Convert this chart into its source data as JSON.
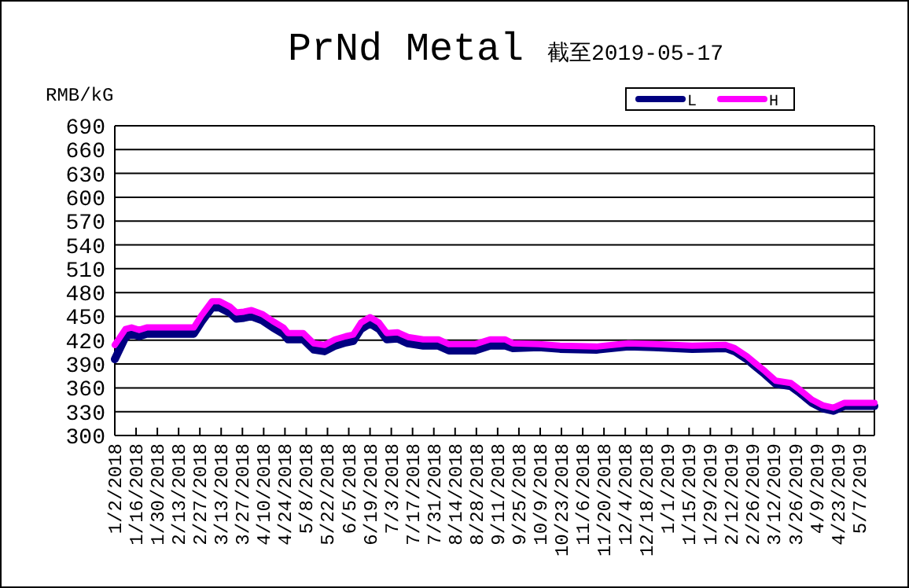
{
  "chart_data": {
    "type": "line",
    "title": "PrNd Metal",
    "subtitle": "截至2019-05-17",
    "ylabel": "RMB/kG",
    "x": [
      "2018-01-02",
      "2018-01-09",
      "2018-01-13",
      "2018-01-18",
      "2018-01-23",
      "2018-02-23",
      "2018-02-28",
      "2018-03-07",
      "2018-03-12",
      "2018-03-19",
      "2018-03-23",
      "2018-03-28",
      "2018-04-02",
      "2018-04-09",
      "2018-04-16",
      "2018-04-23",
      "2018-04-26",
      "2018-05-06",
      "2018-05-13",
      "2018-05-20",
      "2018-05-27",
      "2018-06-03",
      "2018-06-08",
      "2018-06-13",
      "2018-06-19",
      "2018-06-25",
      "2018-06-30",
      "2018-07-07",
      "2018-07-14",
      "2018-07-24",
      "2018-08-03",
      "2018-08-10",
      "2018-08-27",
      "2018-09-06",
      "2018-09-16",
      "2018-09-21",
      "2018-10-08",
      "2018-10-22",
      "2018-11-15",
      "2018-12-06",
      "2018-12-23",
      "2019-01-17",
      "2019-02-08",
      "2019-02-14",
      "2019-02-22",
      "2019-02-27",
      "2019-03-06",
      "2019-03-13",
      "2019-03-23",
      "2019-03-28",
      "2019-04-06",
      "2019-04-13",
      "2019-04-20",
      "2019-04-27",
      "2019-05-17"
    ],
    "series": [
      {
        "name": "L",
        "color": "#000080",
        "values": [
          396,
          424,
          428,
          425,
          428,
          428,
          443,
          461,
          461,
          454,
          447,
          448,
          450,
          445,
          436,
          428,
          421,
          421,
          408,
          406,
          413,
          417,
          419,
          434,
          441,
          434,
          421,
          422,
          416,
          413,
          413,
          407,
          407,
          413,
          413,
          410,
          411,
          409,
          408,
          412,
          411,
          409,
          410,
          406,
          396,
          388,
          377,
          365,
          362,
          355,
          341,
          334,
          331,
          337,
          337
        ]
      },
      {
        "name": "H",
        "color": "#ff00ff",
        "values": [
          414,
          434,
          436,
          433,
          436,
          436,
          451,
          469,
          469,
          462,
          455,
          456,
          458,
          453,
          444,
          436,
          429,
          429,
          416,
          414,
          421,
          425,
          427,
          442,
          449,
          442,
          429,
          430,
          424,
          421,
          421,
          415,
          415,
          421,
          421,
          416,
          415,
          413,
          412,
          416,
          415,
          413,
          414,
          410,
          400,
          392,
          381,
          369,
          366,
          359,
          345,
          338,
          335,
          341,
          341
        ]
      }
    ],
    "xlim": [
      "2018-01-02",
      "2019-05-17"
    ],
    "xticks": [
      {
        "value": "2018-01-02",
        "label": "1/2/2018"
      },
      {
        "value": "2018-01-16",
        "label": "1/16/2018"
      },
      {
        "value": "2018-01-30",
        "label": "1/30/2018"
      },
      {
        "value": "2018-02-13",
        "label": "2/13/2018"
      },
      {
        "value": "2018-02-27",
        "label": "2/27/2018"
      },
      {
        "value": "2018-03-13",
        "label": "3/13/2018"
      },
      {
        "value": "2018-03-27",
        "label": "3/27/2018"
      },
      {
        "value": "2018-04-10",
        "label": "4/10/2018"
      },
      {
        "value": "2018-04-24",
        "label": "4/24/2018"
      },
      {
        "value": "2018-05-08",
        "label": "5/8/2018"
      },
      {
        "value": "2018-05-22",
        "label": "5/22/2018"
      },
      {
        "value": "2018-06-05",
        "label": "6/5/2018"
      },
      {
        "value": "2018-06-19",
        "label": "6/19/2018"
      },
      {
        "value": "2018-07-03",
        "label": "7/3/2018"
      },
      {
        "value": "2018-07-17",
        "label": "7/17/2018"
      },
      {
        "value": "2018-07-31",
        "label": "7/31/2018"
      },
      {
        "value": "2018-08-14",
        "label": "8/14/2018"
      },
      {
        "value": "2018-08-28",
        "label": "8/28/2018"
      },
      {
        "value": "2018-09-11",
        "label": "9/11/2018"
      },
      {
        "value": "2018-09-25",
        "label": "9/25/2018"
      },
      {
        "value": "2018-10-09",
        "label": "10/9/2018"
      },
      {
        "value": "2018-10-23",
        "label": "10/23/2018"
      },
      {
        "value": "2018-11-06",
        "label": "11/6/2018"
      },
      {
        "value": "2018-11-20",
        "label": "11/20/2018"
      },
      {
        "value": "2018-12-04",
        "label": "12/4/2018"
      },
      {
        "value": "2018-12-18",
        "label": "12/18/2018"
      },
      {
        "value": "2019-01-01",
        "label": "1/1/2019"
      },
      {
        "value": "2019-01-15",
        "label": "1/15/2019"
      },
      {
        "value": "2019-01-29",
        "label": "1/29/2019"
      },
      {
        "value": "2019-02-12",
        "label": "2/12/2019"
      },
      {
        "value": "2019-02-26",
        "label": "2/26/2019"
      },
      {
        "value": "2019-03-12",
        "label": "3/12/2019"
      },
      {
        "value": "2019-03-26",
        "label": "3/26/2019"
      },
      {
        "value": "2019-04-09",
        "label": "4/9/2019"
      },
      {
        "value": "2019-04-23",
        "label": "4/23/2019"
      },
      {
        "value": "2019-05-07",
        "label": "5/7/2019"
      }
    ],
    "ylim": [
      300,
      690
    ],
    "yticks": [
      300,
      330,
      360,
      390,
      420,
      450,
      480,
      510,
      540,
      570,
      600,
      630,
      660,
      690
    ],
    "grid": "y",
    "legend": "top right",
    "marker": "none",
    "line_style": "solid"
  }
}
